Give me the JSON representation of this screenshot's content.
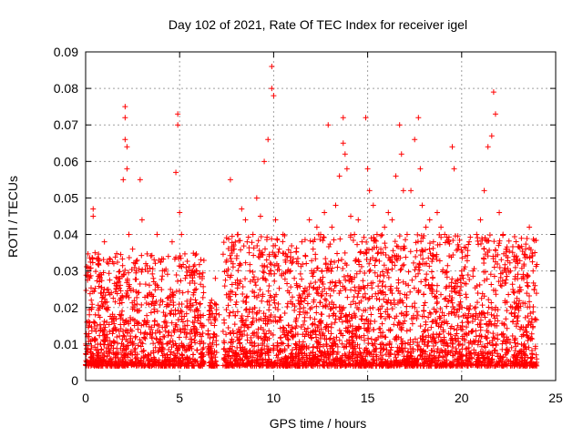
{
  "chart_data": {
    "type": "scatter",
    "title": "Day 102 of 2021, Rate Of TEC Index for receiver igel",
    "xlabel": "GPS time / hours",
    "ylabel": "ROTI / TECUs",
    "xlim": [
      0,
      25
    ],
    "ylim": [
      0,
      0.09
    ],
    "xticks": [
      0,
      5,
      10,
      15,
      20,
      25
    ],
    "yticks": [
      0,
      0.01,
      0.02,
      0.03,
      0.04,
      0.05,
      0.06,
      0.07,
      0.08,
      0.09
    ],
    "xtick_labels": [
      "0",
      "5",
      "10",
      "15",
      "20",
      "25"
    ],
    "ytick_labels": [
      "0",
      "0.01",
      "0.02",
      "0.03",
      "0.04",
      "0.05",
      "0.06",
      "0.07",
      "0.08",
      "0.09"
    ],
    "grid": true,
    "marker": "+",
    "color": "#ff0000",
    "series": [
      {
        "name": "ROTI",
        "points": [
          [
            0.1,
            0.012
          ],
          [
            0.2,
            0.018
          ],
          [
            0.3,
            0.022
          ],
          [
            0.4,
            0.047
          ],
          [
            0.4,
            0.045
          ],
          [
            0.5,
            0.035
          ],
          [
            0.6,
            0.015
          ],
          [
            0.8,
            0.01
          ],
          [
            1.0,
            0.038
          ],
          [
            1.0,
            0.025
          ],
          [
            1.2,
            0.02
          ],
          [
            1.4,
            0.016
          ],
          [
            1.5,
            0.032
          ],
          [
            1.7,
            0.028
          ],
          [
            1.9,
            0.018
          ],
          [
            2.0,
            0.055
          ],
          [
            2.1,
            0.075
          ],
          [
            2.1,
            0.072
          ],
          [
            2.1,
            0.066
          ],
          [
            2.2,
            0.064
          ],
          [
            2.2,
            0.058
          ],
          [
            2.3,
            0.04
          ],
          [
            2.5,
            0.036
          ],
          [
            2.7,
            0.03
          ],
          [
            2.9,
            0.055
          ],
          [
            3.0,
            0.044
          ],
          [
            3.2,
            0.032
          ],
          [
            3.4,
            0.024
          ],
          [
            3.6,
            0.028
          ],
          [
            3.8,
            0.04
          ],
          [
            4.0,
            0.022
          ],
          [
            4.2,
            0.03
          ],
          [
            4.4,
            0.034
          ],
          [
            4.6,
            0.038
          ],
          [
            4.8,
            0.057
          ],
          [
            4.9,
            0.073
          ],
          [
            4.9,
            0.07
          ],
          [
            5.0,
            0.046
          ],
          [
            5.1,
            0.04
          ],
          [
            5.3,
            0.028
          ],
          [
            5.5,
            0.02
          ],
          [
            5.7,
            0.016
          ],
          [
            5.9,
            0.014
          ],
          [
            6.1,
            0.018
          ],
          [
            6.6,
            0.01
          ],
          [
            6.7,
            0.022
          ],
          [
            6.9,
            0.028
          ],
          [
            7.1,
            0.018
          ],
          [
            7.5,
            0.03
          ],
          [
            7.7,
            0.055
          ],
          [
            7.9,
            0.036
          ],
          [
            8.1,
            0.04
          ],
          [
            8.3,
            0.047
          ],
          [
            8.5,
            0.044
          ],
          [
            8.7,
            0.035
          ],
          [
            8.9,
            0.04
          ],
          [
            9.1,
            0.05
          ],
          [
            9.3,
            0.045
          ],
          [
            9.5,
            0.06
          ],
          [
            9.7,
            0.066
          ],
          [
            9.9,
            0.086
          ],
          [
            9.9,
            0.08
          ],
          [
            10.0,
            0.078
          ],
          [
            10.1,
            0.044
          ],
          [
            10.3,
            0.036
          ],
          [
            10.5,
            0.04
          ],
          [
            10.7,
            0.034
          ],
          [
            10.9,
            0.03
          ],
          [
            11.1,
            0.028
          ],
          [
            11.3,
            0.032
          ],
          [
            11.5,
            0.038
          ],
          [
            11.7,
            0.034
          ],
          [
            11.9,
            0.044
          ],
          [
            12.1,
            0.036
          ],
          [
            12.3,
            0.042
          ],
          [
            12.5,
            0.04
          ],
          [
            12.7,
            0.046
          ],
          [
            12.9,
            0.07
          ],
          [
            13.1,
            0.042
          ],
          [
            13.3,
            0.048
          ],
          [
            13.5,
            0.056
          ],
          [
            13.7,
            0.072
          ],
          [
            13.7,
            0.065
          ],
          [
            13.8,
            0.062
          ],
          [
            13.9,
            0.058
          ],
          [
            14.1,
            0.045
          ],
          [
            14.3,
            0.04
          ],
          [
            14.5,
            0.044
          ],
          [
            14.7,
            0.038
          ],
          [
            14.9,
            0.072
          ],
          [
            15.0,
            0.058
          ],
          [
            15.1,
            0.052
          ],
          [
            15.3,
            0.048
          ],
          [
            15.5,
            0.04
          ],
          [
            15.7,
            0.036
          ],
          [
            15.9,
            0.042
          ],
          [
            16.1,
            0.046
          ],
          [
            16.3,
            0.044
          ],
          [
            16.5,
            0.056
          ],
          [
            16.7,
            0.07
          ],
          [
            16.8,
            0.062
          ],
          [
            16.9,
            0.052
          ],
          [
            17.1,
            0.04
          ],
          [
            17.3,
            0.052
          ],
          [
            17.5,
            0.066
          ],
          [
            17.7,
            0.072
          ],
          [
            17.8,
            0.058
          ],
          [
            17.9,
            0.048
          ],
          [
            18.1,
            0.042
          ],
          [
            18.3,
            0.044
          ],
          [
            18.5,
            0.038
          ],
          [
            18.7,
            0.046
          ],
          [
            18.9,
            0.042
          ],
          [
            19.1,
            0.04
          ],
          [
            19.3,
            0.038
          ],
          [
            19.5,
            0.064
          ],
          [
            19.6,
            0.058
          ],
          [
            19.8,
            0.036
          ],
          [
            20.0,
            0.03
          ],
          [
            20.2,
            0.034
          ],
          [
            20.4,
            0.038
          ],
          [
            20.6,
            0.03
          ],
          [
            20.8,
            0.04
          ],
          [
            21.0,
            0.044
          ],
          [
            21.2,
            0.052
          ],
          [
            21.4,
            0.064
          ],
          [
            21.6,
            0.067
          ],
          [
            21.7,
            0.079
          ],
          [
            21.8,
            0.073
          ],
          [
            22.0,
            0.046
          ],
          [
            22.2,
            0.04
          ],
          [
            22.4,
            0.036
          ],
          [
            22.6,
            0.03
          ],
          [
            22.8,
            0.024
          ],
          [
            23.0,
            0.02
          ],
          [
            23.2,
            0.028
          ],
          [
            23.4,
            0.036
          ],
          [
            23.6,
            0.042
          ],
          [
            23.8,
            0.03
          ],
          [
            23.9,
            0.026
          ]
        ],
        "dense_band": [
          {
            "x_start": 0.0,
            "x_end": 6.3,
            "y_low": 0.004,
            "y_high": 0.035
          },
          {
            "x_start": 6.5,
            "x_end": 7.0,
            "y_low": 0.004,
            "y_high": 0.022
          },
          {
            "x_start": 7.3,
            "x_end": 24.0,
            "y_low": 0.004,
            "y_high": 0.04
          }
        ]
      }
    ]
  }
}
